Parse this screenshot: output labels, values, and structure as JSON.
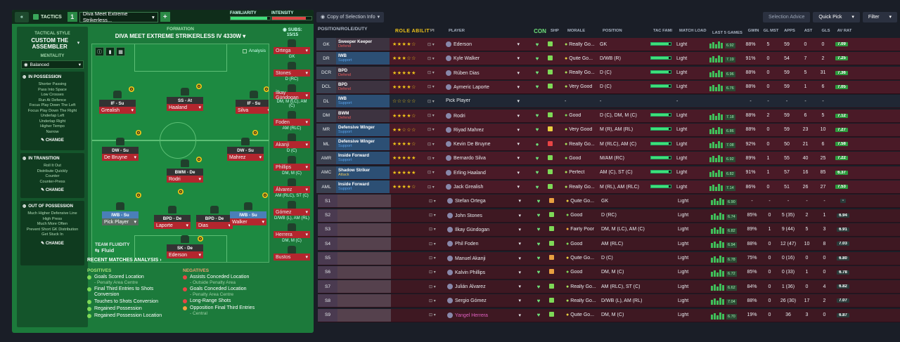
{
  "topbar": {
    "tactics_label": "TACTICS",
    "tactic_number": "1",
    "tactic_name": "Diva Meet Extreme Strikerless...",
    "add_label": "+",
    "familiarity_label": "FAMILIARITY",
    "intensity_label": "INTENSITY",
    "familiarity_level": 0.92,
    "intensity_level": 0.85
  },
  "sidebar": {
    "style_title": "TACTICAL STYLE",
    "style_name": "CUSTOM THE ASSEMBLER",
    "mentality_title": "MENTALITY",
    "mentality_value": "Balanced",
    "in_possession": {
      "title": "IN POSSESSION",
      "items": [
        "Shorter Passing",
        "Pass Into Space",
        "Low Crosses",
        "Run At Defence",
        "Focus Play Down The Left",
        "Focus Play Down The Right",
        "Underlap Left",
        "Underlap Right",
        "Higher Tempo",
        "Narrow"
      ],
      "change": "CHANGE"
    },
    "in_transition": {
      "title": "IN TRANSITION",
      "items": [
        "Roll It Out",
        "Distribute Quickly",
        "Counter",
        "Counter-Press"
      ],
      "change": "CHANGE"
    },
    "out_possession": {
      "title": "OUT OF POSSESSION",
      "items": [
        "Much Higher Defensive Line",
        "High Press",
        "Much More Often",
        "Prevent Short GK Distribution",
        "Get Stuck In"
      ],
      "change": "CHANGE"
    }
  },
  "formation": {
    "title": "FORMATION",
    "name": "DIVA MEET EXTREME STRIKERLESS IV 4330W",
    "analysis_toggle": "Analysis",
    "subs_label": "SUBS:",
    "subs_count": "15/15",
    "fluidity_title": "TEAM FLUIDITY",
    "fluidity_value": "Fluid"
  },
  "pitch_players": [
    {
      "role": "IF - Su",
      "name": "Grealish"
    },
    {
      "role": "SS - At",
      "name": "Haaland"
    },
    {
      "role": "IF - Su",
      "name": "Silva"
    },
    {
      "role": "DW - Su",
      "name": "De Bruyne"
    },
    {
      "role": "DW - Su",
      "name": "Mahrez"
    },
    {
      "role": "BWM - De",
      "name": "Rodri"
    },
    {
      "role": "IWB - Su",
      "name": "Pick Player"
    },
    {
      "role": "BPD - De",
      "name": "Laporte"
    },
    {
      "role": "BPD - De",
      "name": "Dias"
    },
    {
      "role": "IWB - Su",
      "name": "Walker"
    },
    {
      "role": "SK - De",
      "name": "Ederson"
    }
  ],
  "subs": [
    {
      "name": "Ortega",
      "pos": "GK"
    },
    {
      "name": "Stones",
      "pos": "D (RC)"
    },
    {
      "name": "İlkay Gündogan",
      "pos": "DM, M (LC), AM (C)"
    },
    {
      "name": "Foden",
      "pos": "AM (RLC)"
    },
    {
      "name": "Akanji",
      "pos": "D (C)"
    },
    {
      "name": "Phillips",
      "pos": "DM, M (C)"
    },
    {
      "name": "Álvarez",
      "pos": "AM (RLC), ST (C)"
    },
    {
      "name": "Gómez",
      "pos": "D/WB (L), AM (RL)"
    },
    {
      "name": "Herrera",
      "pos": "DM, M (C)"
    },
    {
      "name": "Bustos",
      "pos": ""
    }
  ],
  "analysis": {
    "title": "RECENT MATCHES ANALYSIS",
    "positives_title": "POSITIVES",
    "negatives_title": "NEGATIVES",
    "positives": [
      "Goals Scored Location",
      "Final Third Entries to Shots Conversion",
      "Touches to Shots Conversion",
      "Regained Possession",
      "Regained Possession Location"
    ],
    "positives_sub": "- Penalty Area Centre",
    "negatives": [
      "Assists Conceded Location",
      "Goals Conceded Location",
      "Long-Range Shots",
      "Opposition Final Third Entries"
    ],
    "negatives_subs": [
      "- Outside Penalty Area",
      "- Penalty Area Centre",
      "",
      "- Central"
    ]
  },
  "right_toolbar": {
    "copy_label": "Copy of Selection Info",
    "selection_advice": "Selection Advice",
    "quick_pick": "Quick Pick",
    "filter": "Filter"
  },
  "table_headers": [
    "POSITION/ROLE/DUTY",
    "ROLE ABILITY",
    "PI",
    "PLAYER",
    "CON",
    "SHP",
    "MORALE",
    "POSITION",
    "TAC FAMI",
    "MATCH LOAD",
    "LAST 5 GAMES",
    "GWIN",
    "GL MST",
    "APPS",
    "AST",
    "GLS",
    "AV RAT"
  ],
  "rows": [
    {
      "pos": "GK",
      "role": "Sweeper Keeper",
      "duty": "Defend",
      "ab": "★★★★☆",
      "player": "Ederson",
      "morale": "Really Go...",
      "position": "GK",
      "load": "Light",
      "l5": "6.92",
      "gwin": "88%",
      "gl": "5",
      "apps": "59",
      "ast": "0",
      "gls": "0",
      "avr": "7.09"
    },
    {
      "pos": "DR",
      "role": "IWB",
      "duty": "Support",
      "ab": "★★★☆☆",
      "player": "Kyle Walker",
      "morale": "Quite Go...",
      "position": "D/WB (R)",
      "load": "Light",
      "l5": "7.19",
      "gwin": "91%",
      "gl": "0",
      "apps": "54",
      "ast": "7",
      "gls": "2",
      "avr": "7.25"
    },
    {
      "pos": "DCR",
      "role": "BPD",
      "duty": "Defend",
      "ab": "★★★★★",
      "player": "Rúben Dias",
      "morale": "Really Go...",
      "position": "D (C)",
      "load": "Light",
      "l5": "6.96",
      "gwin": "88%",
      "gl": "0",
      "apps": "59",
      "ast": "5",
      "gls": "31",
      "avr": "7.36"
    },
    {
      "pos": "DCL",
      "role": "BPD",
      "duty": "Defend",
      "ab": "★★★★☆",
      "player": "Aymeric Laporte",
      "morale": "Very Good",
      "position": "D (C)",
      "load": "Light",
      "l5": "6.76",
      "gwin": "88%",
      "gl": "0",
      "apps": "59",
      "ast": "1",
      "gls": "6",
      "avr": "7.05"
    },
    {
      "pos": "DL",
      "role": "IWB",
      "duty": "Support",
      "ab": "☆☆☆☆☆",
      "player": "Pick Player",
      "morale": "-",
      "position": "-",
      "load": "-",
      "l5": "",
      "gwin": "-",
      "gl": "-",
      "apps": "-",
      "ast": "-",
      "gls": "-",
      "avr": ""
    },
    {
      "pos": "DM",
      "role": "BWM",
      "duty": "Defend",
      "ab": "★★★★☆",
      "player": "Rodri",
      "morale": "Good",
      "position": "D (C), DM, M (C)",
      "load": "Light",
      "l5": "7.18",
      "gwin": "88%",
      "gl": "2",
      "apps": "59",
      "ast": "6",
      "gls": "5",
      "avr": "7.12"
    },
    {
      "pos": "MR",
      "role": "Defensive Winger",
      "duty": "Support",
      "ab": "★★☆☆☆",
      "player": "Riyad Mahrez",
      "morale": "Very Good",
      "position": "M (R), AM (RL)",
      "load": "Light",
      "l5": "6.86",
      "gwin": "88%",
      "gl": "0",
      "apps": "59",
      "ast": "23",
      "gls": "10",
      "avr": "7.27"
    },
    {
      "pos": "ML",
      "role": "Defensive Winger",
      "duty": "Support",
      "ab": "★★★★☆",
      "player": "Kevin De Bruyne",
      "morale": "Really Go...",
      "position": "M (RLC), AM (C)",
      "load": "Light",
      "l5": "7.08",
      "gwin": "92%",
      "gl": "0",
      "apps": "50",
      "ast": "21",
      "gls": "6",
      "avr": "7.58"
    },
    {
      "pos": "AMR",
      "role": "Inside Forward",
      "duty": "Support",
      "ab": "★★★★★",
      "player": "Bernardo Silva",
      "morale": "Good",
      "position": "M/AM (RC)",
      "load": "Light",
      "l5": "6.92",
      "gwin": "89%",
      "gl": "1",
      "apps": "55",
      "ast": "40",
      "gls": "25",
      "avr": "7.22"
    },
    {
      "pos": "AMC",
      "role": "Shadow Striker",
      "duty": "Attack",
      "ab": "★★★★★",
      "player": "Erling Haaland",
      "morale": "Perfect",
      "position": "AM (C), ST (C)",
      "load": "Light",
      "l5": "6.82",
      "gwin": "91%",
      "gl": "1",
      "apps": "57",
      "ast": "16",
      "gls": "85",
      "avr": "6.37"
    },
    {
      "pos": "AML",
      "role": "Inside Forward",
      "duty": "Support",
      "ab": "★★★★☆",
      "player": "Jack Grealish",
      "morale": "Really Go...",
      "position": "M (RL), AM (RLC)",
      "load": "Light",
      "l5": "7.14",
      "gwin": "86%",
      "gl": "0",
      "apps": "51",
      "ast": "26",
      "gls": "27",
      "avr": "7.53"
    },
    {
      "pos": "S1",
      "role": "",
      "duty": "",
      "ab": "",
      "player": "Stefan Ortega",
      "morale": "Quite Go...",
      "position": "GK",
      "load": "Light",
      "l5": "6.90",
      "gwin": "-",
      "gl": "-",
      "apps": "-",
      "ast": "-",
      "gls": "-",
      "avr": "-"
    },
    {
      "pos": "S2",
      "role": "",
      "duty": "",
      "ab": "",
      "player": "John Stones",
      "morale": "Good",
      "position": "D (RC)",
      "load": "Light",
      "l5": "6.74",
      "gwin": "85%",
      "gl": "0",
      "apps": "5 (35)",
      "ast": "2",
      "gls": "1",
      "avr": "6.94"
    },
    {
      "pos": "S3",
      "role": "",
      "duty": "",
      "ab": "",
      "player": "İlkay Gündogan",
      "morale": "Fairly Poor",
      "position": "DM, M (LC), AM (C)",
      "load": "Light",
      "l5": "6.82",
      "gwin": "89%",
      "gl": "1",
      "apps": "9 (44)",
      "ast": "5",
      "gls": "3",
      "avr": "6.91"
    },
    {
      "pos": "S4",
      "role": "",
      "duty": "",
      "ab": "",
      "player": "Phil Foden",
      "morale": "Good",
      "position": "AM (RLC)",
      "load": "Light",
      "l5": "6.94",
      "gwin": "88%",
      "gl": "0",
      "apps": "12 (47)",
      "ast": "10",
      "gls": "8",
      "avr": "7.03"
    },
    {
      "pos": "S5",
      "role": "",
      "duty": "",
      "ab": "",
      "player": "Manuel Akanji",
      "morale": "Quite Go...",
      "position": "D (C)",
      "load": "Light",
      "l5": "6.78",
      "gwin": "75%",
      "gl": "0",
      "apps": "0 (16)",
      "ast": "0",
      "gls": "0",
      "avr": "6.80"
    },
    {
      "pos": "S6",
      "role": "",
      "duty": "",
      "ab": "",
      "player": "Kalvin Phillips",
      "morale": "Good",
      "position": "DM, M (C)",
      "load": "Light",
      "l5": "6.72",
      "gwin": "85%",
      "gl": "0",
      "apps": "0 (33)",
      "ast": "1",
      "gls": "0",
      "avr": "6.78"
    },
    {
      "pos": "S7",
      "role": "",
      "duty": "",
      "ab": "",
      "player": "Julián Álvarez",
      "morale": "Really Go...",
      "position": "AM (RLC), ST (C)",
      "load": "Light",
      "l5": "6.62",
      "gwin": "84%",
      "gl": "0",
      "apps": "1 (36)",
      "ast": "0",
      "gls": "4",
      "avr": "6.82"
    },
    {
      "pos": "S8",
      "role": "",
      "duty": "",
      "ab": "",
      "player": "Sergio Gómez",
      "morale": "Really Go...",
      "position": "D/WB (L), AM (RL)",
      "load": "Light",
      "l5": "7.04",
      "gwin": "88%",
      "gl": "0",
      "apps": "26 (30)",
      "ast": "17",
      "gls": "2",
      "avr": "7.07"
    },
    {
      "pos": "S9",
      "role": "",
      "duty": "",
      "ab": "",
      "player": "Yangel Herrera",
      "morale": "Quite Go...",
      "position": "DM, M (C)",
      "load": "Light",
      "l5": "6.70",
      "gwin": "19%",
      "gl": "0",
      "apps": "36",
      "ast": "3",
      "gls": "0",
      "avr": "6.87"
    }
  ]
}
